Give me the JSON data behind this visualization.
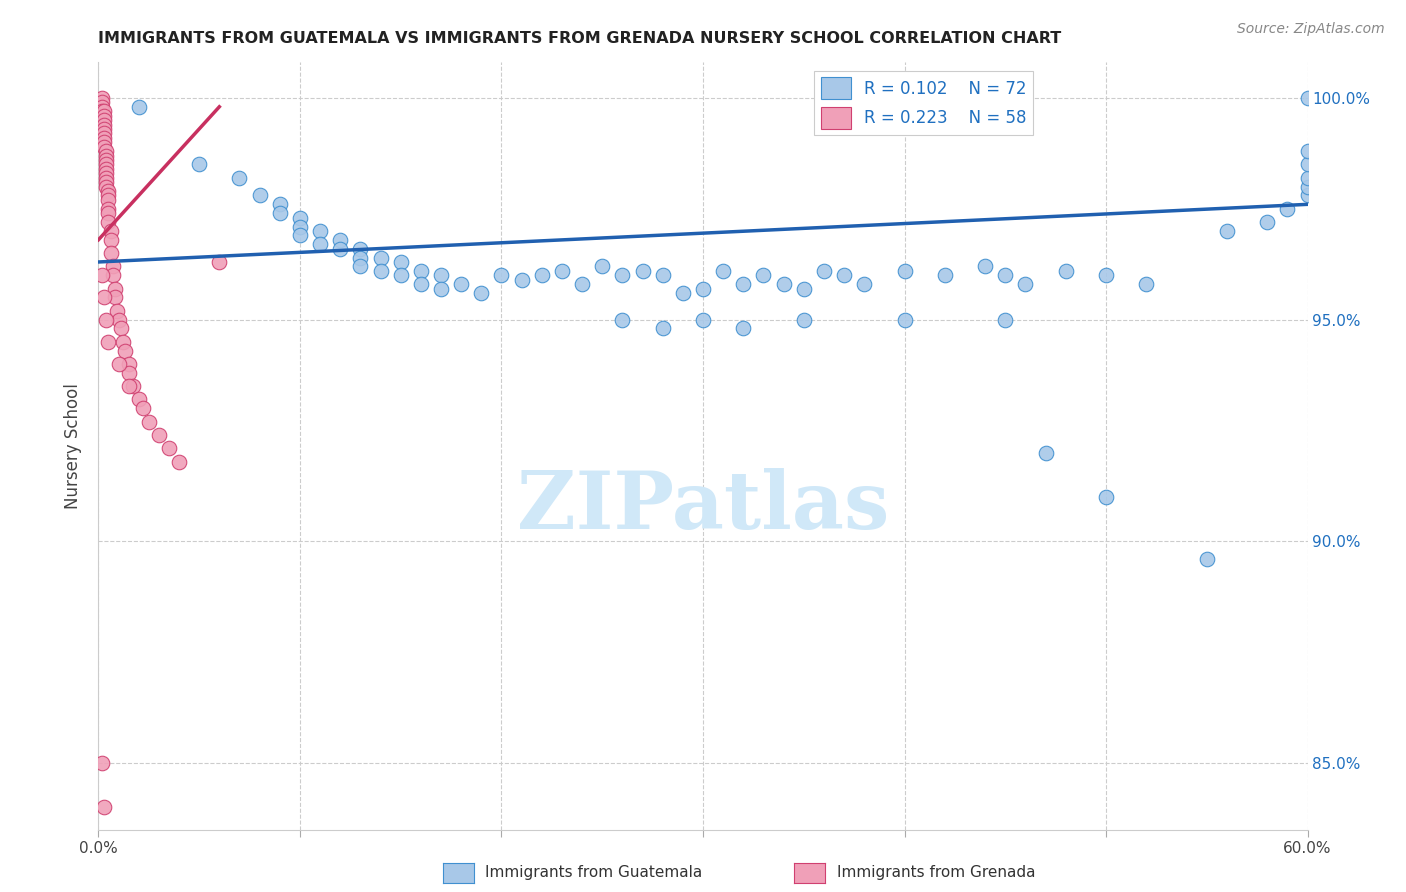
{
  "title": "IMMIGRANTS FROM GUATEMALA VS IMMIGRANTS FROM GRENADA NURSERY SCHOOL CORRELATION CHART",
  "source": "Source: ZipAtlas.com",
  "ylabel": "Nursery School",
  "xlim": [
    0.0,
    0.6
  ],
  "ylim": [
    0.835,
    1.008
  ],
  "right_yticks": [
    1.0,
    0.95,
    0.9,
    0.85
  ],
  "right_yticklabels": [
    "100.0%",
    "95.0%",
    "90.0%",
    "85.0%"
  ],
  "bottom_xticks": [
    0.0,
    0.1,
    0.2,
    0.3,
    0.4,
    0.5,
    0.6
  ],
  "legend_R": [
    "0.102",
    "0.223"
  ],
  "legend_N": [
    "72",
    "58"
  ],
  "blue_color": "#a8c8e8",
  "pink_color": "#f0a0b8",
  "blue_edge_color": "#4090d0",
  "pink_edge_color": "#d04070",
  "blue_line_color": "#2060b0",
  "pink_line_color": "#c83060",
  "watermark": "ZIPatlas",
  "watermark_color": "#d0e8f8",
  "blue_scatter_x": [
    0.02,
    0.05,
    0.07,
    0.08,
    0.09,
    0.09,
    0.1,
    0.1,
    0.1,
    0.11,
    0.11,
    0.12,
    0.12,
    0.13,
    0.13,
    0.13,
    0.14,
    0.14,
    0.15,
    0.15,
    0.16,
    0.16,
    0.17,
    0.17,
    0.18,
    0.19,
    0.2,
    0.21,
    0.22,
    0.23,
    0.24,
    0.25,
    0.26,
    0.27,
    0.28,
    0.29,
    0.3,
    0.31,
    0.32,
    0.33,
    0.34,
    0.35,
    0.36,
    0.37,
    0.38,
    0.4,
    0.42,
    0.44,
    0.45,
    0.46,
    0.48,
    0.5,
    0.52,
    0.26,
    0.28,
    0.3,
    0.32,
    0.35,
    0.4,
    0.45,
    0.56,
    0.58,
    0.59,
    0.6,
    0.6,
    0.6,
    0.6,
    0.6,
    0.47,
    0.5,
    0.55,
    0.6
  ],
  "blue_scatter_y": [
    0.998,
    0.985,
    0.982,
    0.978,
    0.976,
    0.974,
    0.973,
    0.971,
    0.969,
    0.97,
    0.967,
    0.968,
    0.966,
    0.966,
    0.964,
    0.962,
    0.964,
    0.961,
    0.963,
    0.96,
    0.961,
    0.958,
    0.96,
    0.957,
    0.958,
    0.956,
    0.96,
    0.959,
    0.96,
    0.961,
    0.958,
    0.962,
    0.96,
    0.961,
    0.96,
    0.956,
    0.957,
    0.961,
    0.958,
    0.96,
    0.958,
    0.957,
    0.961,
    0.96,
    0.958,
    0.961,
    0.96,
    0.962,
    0.96,
    0.958,
    0.961,
    0.96,
    0.958,
    0.95,
    0.948,
    0.95,
    0.948,
    0.95,
    0.95,
    0.95,
    0.97,
    0.972,
    0.975,
    0.978,
    0.98,
    0.982,
    0.985,
    0.988,
    0.92,
    0.91,
    0.896,
    1.0
  ],
  "pink_scatter_x": [
    0.002,
    0.002,
    0.002,
    0.002,
    0.003,
    0.003,
    0.003,
    0.003,
    0.003,
    0.003,
    0.003,
    0.003,
    0.003,
    0.004,
    0.004,
    0.004,
    0.004,
    0.004,
    0.004,
    0.004,
    0.004,
    0.004,
    0.005,
    0.005,
    0.005,
    0.005,
    0.005,
    0.005,
    0.006,
    0.006,
    0.006,
    0.007,
    0.007,
    0.008,
    0.008,
    0.009,
    0.01,
    0.011,
    0.012,
    0.013,
    0.015,
    0.015,
    0.017,
    0.02,
    0.022,
    0.025,
    0.03,
    0.035,
    0.04,
    0.002,
    0.003,
    0.004,
    0.005,
    0.01,
    0.015,
    0.002,
    0.003,
    0.06
  ],
  "pink_scatter_y": [
    1.0,
    0.999,
    0.998,
    0.997,
    0.997,
    0.996,
    0.995,
    0.994,
    0.993,
    0.992,
    0.991,
    0.99,
    0.989,
    0.988,
    0.987,
    0.986,
    0.985,
    0.984,
    0.983,
    0.982,
    0.981,
    0.98,
    0.979,
    0.978,
    0.977,
    0.975,
    0.974,
    0.972,
    0.97,
    0.968,
    0.965,
    0.962,
    0.96,
    0.957,
    0.955,
    0.952,
    0.95,
    0.948,
    0.945,
    0.943,
    0.94,
    0.938,
    0.935,
    0.932,
    0.93,
    0.927,
    0.924,
    0.921,
    0.918,
    0.96,
    0.955,
    0.95,
    0.945,
    0.94,
    0.935,
    0.85,
    0.84,
    0.963
  ],
  "blue_line_x": [
    0.0,
    0.6
  ],
  "blue_line_y": [
    0.963,
    0.976
  ],
  "pink_line_x": [
    0.0,
    0.06
  ],
  "pink_line_y": [
    0.968,
    0.998
  ]
}
